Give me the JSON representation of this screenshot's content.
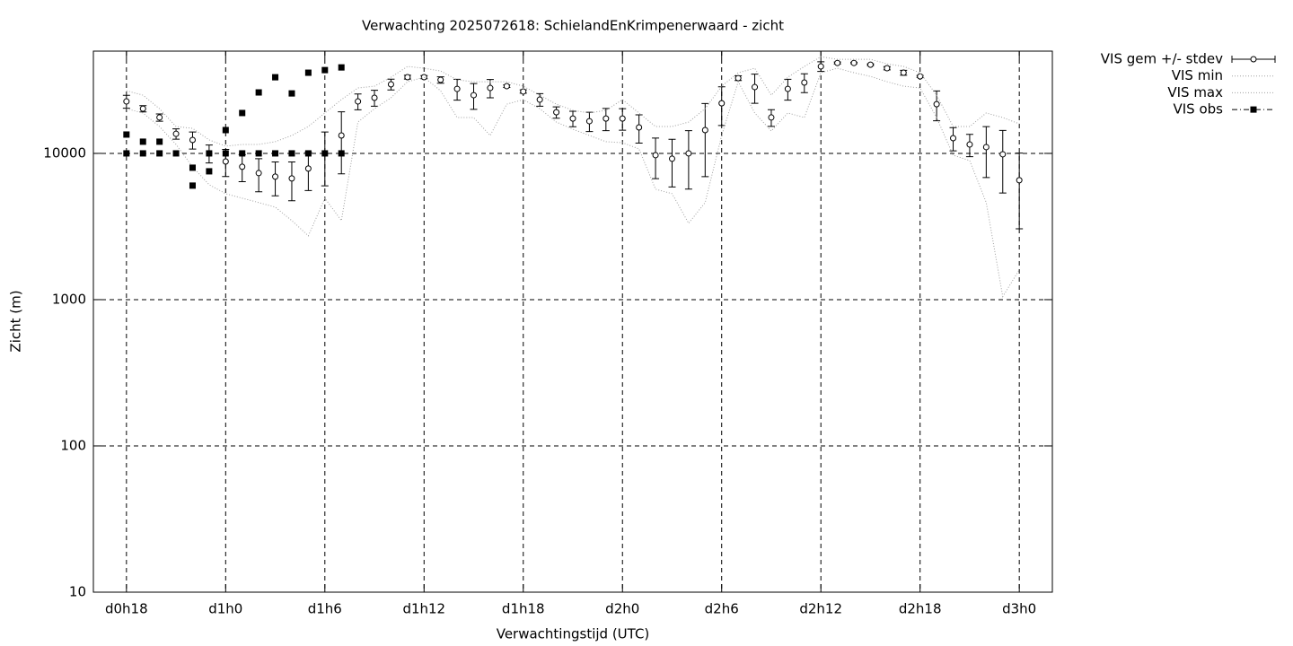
{
  "chart_data": {
    "type": "errorbar",
    "title": "Verwachting 2025072618: SchielandEnKrimpenerwaard - zicht",
    "x_label": "Verwachtingstijd (UTC)",
    "y_label": "Zicht (m)",
    "log_y": true,
    "grid": true,
    "legend": "outside-top-right",
    "xlim": [
      16,
      74
    ],
    "ylim": [
      10,
      50000
    ],
    "xticks": [
      {
        "value": 18,
        "label": "d0h18"
      },
      {
        "value": 24,
        "label": "d1h0"
      },
      {
        "value": 30,
        "label": "d1h6"
      },
      {
        "value": 36,
        "label": "d1h12"
      },
      {
        "value": 42,
        "label": "d1h18"
      },
      {
        "value": 48,
        "label": "d2h0"
      },
      {
        "value": 54,
        "label": "d2h6"
      },
      {
        "value": 60,
        "label": "d2h12"
      },
      {
        "value": 66,
        "label": "d2h18"
      },
      {
        "value": 72,
        "label": "d3h0"
      }
    ],
    "yticks": [
      10,
      100,
      1000,
      10000
    ],
    "x": [
      18,
      19,
      20,
      21,
      22,
      23,
      24,
      25,
      26,
      27,
      28,
      29,
      30,
      31,
      32,
      33,
      34,
      35,
      36,
      37,
      38,
      39,
      40,
      41,
      42,
      43,
      44,
      45,
      46,
      47,
      48,
      49,
      50,
      51,
      52,
      53,
      54,
      55,
      56,
      57,
      58,
      59,
      60,
      61,
      62,
      63,
      64,
      65,
      66,
      67,
      68,
      69,
      70,
      71,
      72
    ],
    "series": [
      {
        "name": "VIS gem +/- stdev",
        "color": "#000000",
        "style": "errorbars",
        "values": [
          22650,
          20200,
          17600,
          13600,
          12350,
          10000,
          8800,
          8100,
          7330,
          6930,
          6740,
          7870,
          10000,
          13250,
          22650,
          24000,
          29650,
          33200,
          33200,
          31800,
          27600,
          25000,
          28000,
          28800,
          26500,
          23300,
          19100,
          17300,
          16600,
          17300,
          17300,
          15050,
          9720,
          9190,
          10000,
          14430,
          22000,
          32700,
          28400,
          17600,
          27600,
          30500,
          39300,
          41500,
          41500,
          40400,
          38200,
          35600,
          33600,
          21700,
          12700,
          11500,
          11040,
          9860,
          6550
        ],
        "errors": [
          2300,
          1000,
          1000,
          1100,
          1650,
          1400,
          1850,
          1700,
          1870,
          1800,
          2000,
          2300,
          4000,
          6000,
          2800,
          3000,
          2500,
          1000,
          800,
          1600,
          4500,
          5000,
          4000,
          600,
          700,
          2300,
          1700,
          2100,
          2500,
          3000,
          2900,
          3300,
          3000,
          3300,
          4300,
          7500,
          6500,
          1200,
          6400,
          2300,
          4500,
          4500,
          3000,
          600,
          500,
          500,
          1000,
          1400,
          500,
          5000,
          2300,
          2000,
          4200,
          4500,
          3500
        ]
      },
      {
        "name": "VIS min",
        "color": "#a0a0a0",
        "style": "dotted",
        "values": [
          20200,
          18880,
          15260,
          11510,
          8090,
          6110,
          5300,
          4940,
          4610,
          4290,
          3470,
          2730,
          4940,
          3470,
          16370,
          20200,
          23990,
          30900,
          33150,
          26800,
          17580,
          17580,
          13250,
          21700,
          23300,
          20200,
          16370,
          14630,
          13250,
          12020,
          11830,
          10730,
          5690,
          5300,
          3330,
          4610,
          13250,
          30900,
          18880,
          14230,
          18880,
          17580,
          35600,
          38200,
          35600,
          33600,
          30900,
          28800,
          28000,
          17580,
          9720,
          8930,
          4610,
          1050,
          1600
        ]
      },
      {
        "name": "VIS max",
        "color": "#a0a0a0",
        "style": "dotted",
        "values": [
          26800,
          25000,
          20200,
          15260,
          14830,
          12360,
          11200,
          11510,
          11510,
          12020,
          13250,
          15260,
          18880,
          23300,
          28000,
          28800,
          33150,
          39300,
          38200,
          36600,
          31800,
          30900,
          30900,
          30900,
          28800,
          25000,
          21700,
          19700,
          18880,
          19700,
          23300,
          18880,
          15260,
          15260,
          16370,
          20200,
          28800,
          35600,
          38200,
          25000,
          33150,
          39300,
          45800,
          43950,
          43950,
          43950,
          40950,
          39300,
          35600,
          25000,
          15260,
          15260,
          18880,
          17580,
          15920
        ]
      },
      {
        "name": "VIS obs",
        "color": "#000000",
        "style": "points",
        "x": [
          18,
          18,
          19,
          19,
          20,
          20,
          21,
          22,
          22,
          23,
          23,
          24,
          24,
          25,
          25,
          26,
          26,
          27,
          27,
          28,
          28,
          29,
          29,
          30,
          30,
          31,
          31
        ],
        "values": [
          13450,
          10000,
          12020,
          10000,
          12020,
          10000,
          10000,
          7980,
          6020,
          10000,
          7540,
          14430,
          10000,
          18880,
          10000,
          26100,
          10000,
          33150,
          10000,
          25700,
          10000,
          35600,
          10000,
          37100,
          10000,
          38700,
          10000
        ]
      }
    ]
  }
}
